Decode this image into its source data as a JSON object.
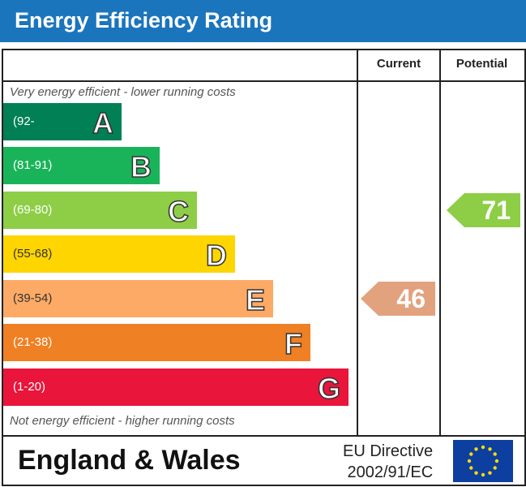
{
  "chart_data": {
    "type": "bar",
    "title": "Energy Efficiency Rating",
    "columns": [
      "Current",
      "Potential"
    ],
    "top_note": "Very energy efficient - lower running costs",
    "bottom_note": "Not energy efficient - higher running costs",
    "bands": [
      {
        "letter": "A",
        "range": "(92-",
        "color": "#008054"
      },
      {
        "letter": "B",
        "range": "(81-91)",
        "color": "#19b459"
      },
      {
        "letter": "C",
        "range": "(69-80)",
        "color": "#8dce46"
      },
      {
        "letter": "D",
        "range": "(55-68)",
        "color": "#ffd500"
      },
      {
        "letter": "E",
        "range": "(39-54)",
        "color": "#fcaa65"
      },
      {
        "letter": "F",
        "range": "(21-38)",
        "color": "#ef8023"
      },
      {
        "letter": "G",
        "range": "(1-20)",
        "color": "#e9153b"
      }
    ],
    "current": {
      "value": 46,
      "band": "E",
      "color": "#e2a27e"
    },
    "potential": {
      "value": 71,
      "band": "C",
      "color": "#8dce46"
    }
  },
  "footer": {
    "region": "England & Wales",
    "directive_line1": "EU Directive",
    "directive_line2": "2002/91/EC",
    "flag": "eu-flag-icon"
  }
}
